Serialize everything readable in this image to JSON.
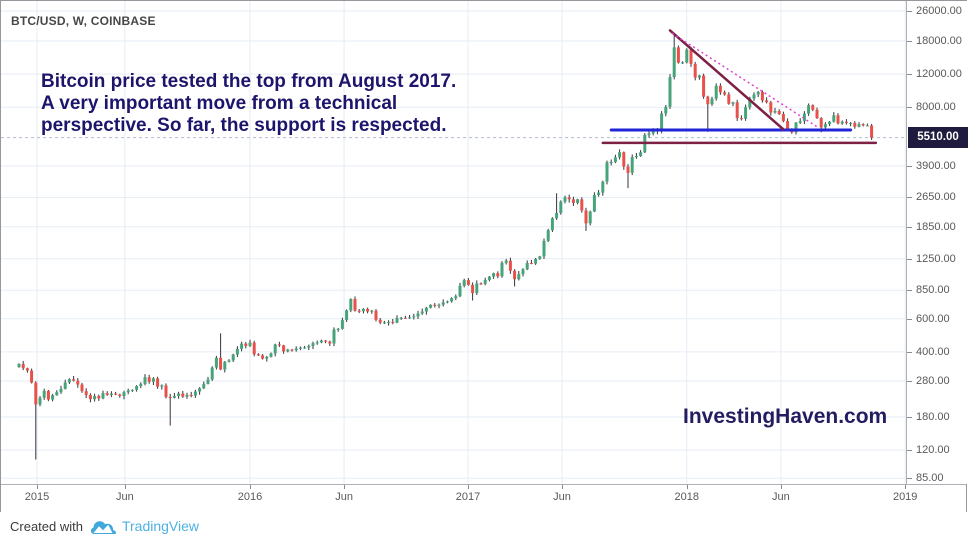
{
  "header": {
    "title": "BTC/USD, W, COINBASE"
  },
  "annotation": {
    "lines": [
      "Bitcoin price tested the top from August 2017.",
      "A very important move from a technical",
      "perspective. So far, the support is respected."
    ],
    "text_color": "#1c156b"
  },
  "watermark": "InvestingHaven.com",
  "price_badge": {
    "value": "5510.00",
    "bg_color": "#1e1b3e",
    "text_color": "#ffffff"
  },
  "footer": {
    "created_with": "Created with",
    "brand": "TradingView",
    "logo_icon": "tradingview-logo",
    "brand_color": "#4eb1e1"
  },
  "colors": {
    "grid": "#e6edf5",
    "axis_text": "#595959",
    "frame_border": "#95979c",
    "candle_up": "#47a47a",
    "candle_down": "#e8504a",
    "candle_wick": "#33343d",
    "support_blue": "#2026d8",
    "maroon": "#7c2044",
    "dotted_magenta": "#e03fd0",
    "last_price_dash": "#b3bbcd"
  },
  "chart_data": {
    "type": "candlestick",
    "title": "BTC/USD weekly candlestick chart, Coinbase, log scale",
    "symbol": "BTC/USD",
    "timeframe": "W",
    "exchange": "COINBASE",
    "y_scale": "log",
    "y_ticks": [
      26000.0,
      18000.0,
      12000.0,
      8000.0,
      3900.0,
      2650.0,
      1850.0,
      1250.0,
      850.0,
      600.0,
      400.0,
      280.0,
      180.0,
      120.0,
      85.0
    ],
    "x_ticks": [
      {
        "label": "2015",
        "week": 4.3
      },
      {
        "label": "Jun",
        "week": 25.2
      },
      {
        "label": "2016",
        "week": 55
      },
      {
        "label": "Jun",
        "week": 77.4
      },
      {
        "label": "2017",
        "week": 106.9
      },
      {
        "label": "Jun",
        "week": 129.3
      },
      {
        "label": "2018",
        "week": 159
      },
      {
        "label": "Jun",
        "week": 181.4
      },
      {
        "label": "2019",
        "week": 211
      }
    ],
    "first_week_date": "2014-12-15",
    "first_open": 332,
    "last_price": 5510.0,
    "weekly_closes": [
      345,
      327,
      318,
      274,
      210,
      228,
      248,
      223,
      235,
      244,
      254,
      275,
      286,
      281,
      268,
      247,
      236,
      224,
      233,
      226,
      241,
      236,
      240,
      237,
      233,
      244,
      249,
      251,
      263,
      270,
      293,
      277,
      289,
      261,
      265,
      230,
      228,
      233,
      240,
      231,
      236,
      234,
      246,
      256,
      270,
      285,
      330,
      372,
      322,
      354,
      360,
      387,
      415,
      442,
      430,
      448,
      388,
      383,
      368,
      376,
      392,
      438,
      433,
      402,
      411,
      408,
      417,
      421,
      422,
      430,
      445,
      449,
      459,
      453,
      443,
      526,
      530,
      590,
      665,
      764,
      662,
      658,
      677,
      655,
      662,
      592,
      572,
      574,
      577,
      572,
      606,
      607,
      604,
      610,
      617,
      640,
      655,
      686,
      711,
      703,
      712,
      733,
      742,
      772,
      790,
      898,
      963,
      908,
      821,
      924,
      919,
      965,
      1005,
      1048,
      1009,
      1190,
      1222,
      1080,
      973,
      1036,
      1099,
      1187,
      1178,
      1250,
      1288,
      1555,
      1775,
      2053,
      2192,
      2519,
      2655,
      2590,
      2478,
      2590,
      2259,
      1929,
      2230,
      2732,
      2810,
      3215,
      4073,
      4087,
      4331,
      4612,
      3866,
      3583,
      4341,
      4403,
      4610,
      5704,
      5808,
      6153,
      5950,
      7407,
      8038,
      11573,
      16650,
      13800,
      13850,
      16200,
      13600,
      11500,
      11800,
      9100,
      8300,
      8900,
      10400,
      9600,
      9350,
      8350,
      8500,
      7000,
      6950,
      8000,
      8900,
      9350,
      9650,
      8700,
      8500,
      7500,
      7640,
      7360,
      6750,
      6150,
      5880,
      6620,
      6750,
      7400,
      8200,
      7750,
      7000,
      6250,
      6500,
      6700,
      7250,
      6550,
      6700,
      6600,
      6600,
      6300,
      6500,
      6400,
      6400,
      5510
    ],
    "wick_overrides": {
      "4": {
        "low": 107
      },
      "36": {
        "low": 162
      },
      "48": {
        "high": 502
      },
      "108": {
        "low": 750
      },
      "118": {
        "low": 891
      },
      "128": {
        "high": 2790
      },
      "135": {
        "low": 1758
      },
      "145": {
        "low": 2972
      },
      "156": {
        "high": 19900
      },
      "164": {
        "low": 5920
      },
      "184": {
        "low": 5780
      },
      "191": {
        "low": 5880
      },
      "203": {
        "low": 5360
      }
    },
    "annotations": {
      "support_line": {
        "name": "blue-support-line",
        "color": "#2026d8",
        "price": 6050,
        "from_week": 141,
        "to_week": 198,
        "width": 3
      },
      "base_line": {
        "name": "maroon-base-line",
        "color": "#7c2044",
        "price": 5170,
        "from_week": 139,
        "to_week": 204,
        "width": 2.5
      },
      "trend_line": {
        "name": "descending-trendline",
        "color": "#7c2044",
        "from": {
          "week": 155,
          "price": 20500
        },
        "to": {
          "week": 182,
          "price": 6100
        },
        "width": 2.5
      },
      "dotted_trend_line": {
        "name": "dotted-trendline",
        "color": "#e03fd0",
        "style": "dotted",
        "from": {
          "week": 155.5,
          "price": 19800
        },
        "to": {
          "week": 190,
          "price": 6300
        },
        "width": 1.5
      },
      "last_price_line": {
        "name": "last-price-dashed-line",
        "color": "#b3bbcd",
        "style": "dashed",
        "price": 5510
      }
    },
    "legend_position": "none",
    "grid": true
  }
}
